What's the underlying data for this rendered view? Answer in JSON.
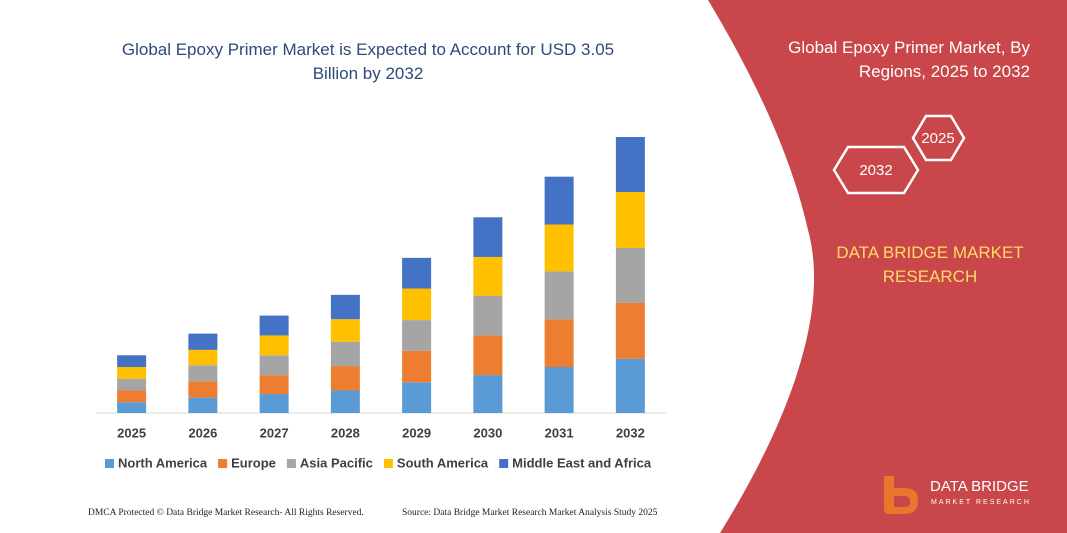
{
  "chart_data": {
    "type": "bar",
    "stacked": true,
    "title": "Global Epoxy Primer Market is Expected to Account for USD 3.05 Billion by 2032",
    "categories": [
      "2025",
      "2026",
      "2027",
      "2028",
      "2029",
      "2030",
      "2031",
      "2032"
    ],
    "series": [
      {
        "name": "North America",
        "color": "#5b9bd5",
        "values": [
          0.12,
          0.17,
          0.21,
          0.25,
          0.34,
          0.42,
          0.51,
          0.6
        ]
      },
      {
        "name": "Europe",
        "color": "#ed7d31",
        "values": [
          0.13,
          0.18,
          0.21,
          0.27,
          0.35,
          0.44,
          0.53,
          0.62
        ]
      },
      {
        "name": "Asia Pacific",
        "color": "#a5a5a5",
        "values": [
          0.13,
          0.18,
          0.22,
          0.27,
          0.34,
          0.44,
          0.53,
          0.61
        ]
      },
      {
        "name": "South America",
        "color": "#ffc000",
        "values": [
          0.13,
          0.17,
          0.22,
          0.25,
          0.35,
          0.43,
          0.52,
          0.62
        ]
      },
      {
        "name": "Middle East and Africa",
        "color": "#4472c4",
        "values": [
          0.13,
          0.18,
          0.22,
          0.27,
          0.34,
          0.44,
          0.53,
          0.61
        ]
      }
    ],
    "legend": "bottom"
  },
  "panel": {
    "title": "Global Epoxy Primer Market, By Regions, 2025 to 2032",
    "hex_back": "2025",
    "hex_front": "2032",
    "brand": "DATA BRIDGE MARKET RESEARCH"
  },
  "footer": {
    "left": "DMCA Protected © Data Bridge Market Research- All Rights Reserved.",
    "right": "Source: Data Bridge Market Research  Market Analysis Study 2025"
  },
  "logo": {
    "name": "DATA BRIDGE",
    "tagline": "MARKET RESEARCH"
  }
}
